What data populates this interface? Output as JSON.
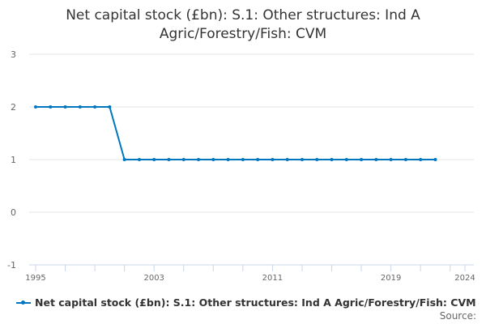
{
  "chart_data": {
    "type": "line",
    "title_lines": [
      "Net capital stock (£bn): S.1: Other structures: Ind A",
      "Agric/Forestry/Fish: CVM"
    ],
    "x": [
      1995,
      1996,
      1997,
      1998,
      1999,
      2000,
      2001,
      2002,
      2003,
      2004,
      2005,
      2006,
      2007,
      2008,
      2009,
      2010,
      2011,
      2012,
      2013,
      2014,
      2015,
      2016,
      2017,
      2018,
      2019,
      2020,
      2021,
      2022
    ],
    "series": [
      {
        "name": "Net capital stock (£bn): S.1: Other structures: Ind A Agric/Forestry/Fish: CVM",
        "values": [
          2,
          2,
          2,
          2,
          2,
          2,
          1,
          1,
          1,
          1,
          1,
          1,
          1,
          1,
          1,
          1,
          1,
          1,
          1,
          1,
          1,
          1,
          1,
          1,
          1,
          1,
          1,
          1
        ]
      }
    ],
    "xlim": [
      1995,
      2024
    ],
    "ylim": [
      -1,
      3
    ],
    "yticks": [
      "3",
      "2",
      "1",
      "0",
      "-1"
    ],
    "xtick_labels": [
      "1995",
      "2003",
      "2011",
      "2019",
      "2024"
    ],
    "color": "#0076c0",
    "grid": true,
    "legend": "bottom",
    "source_label": "Source:"
  }
}
